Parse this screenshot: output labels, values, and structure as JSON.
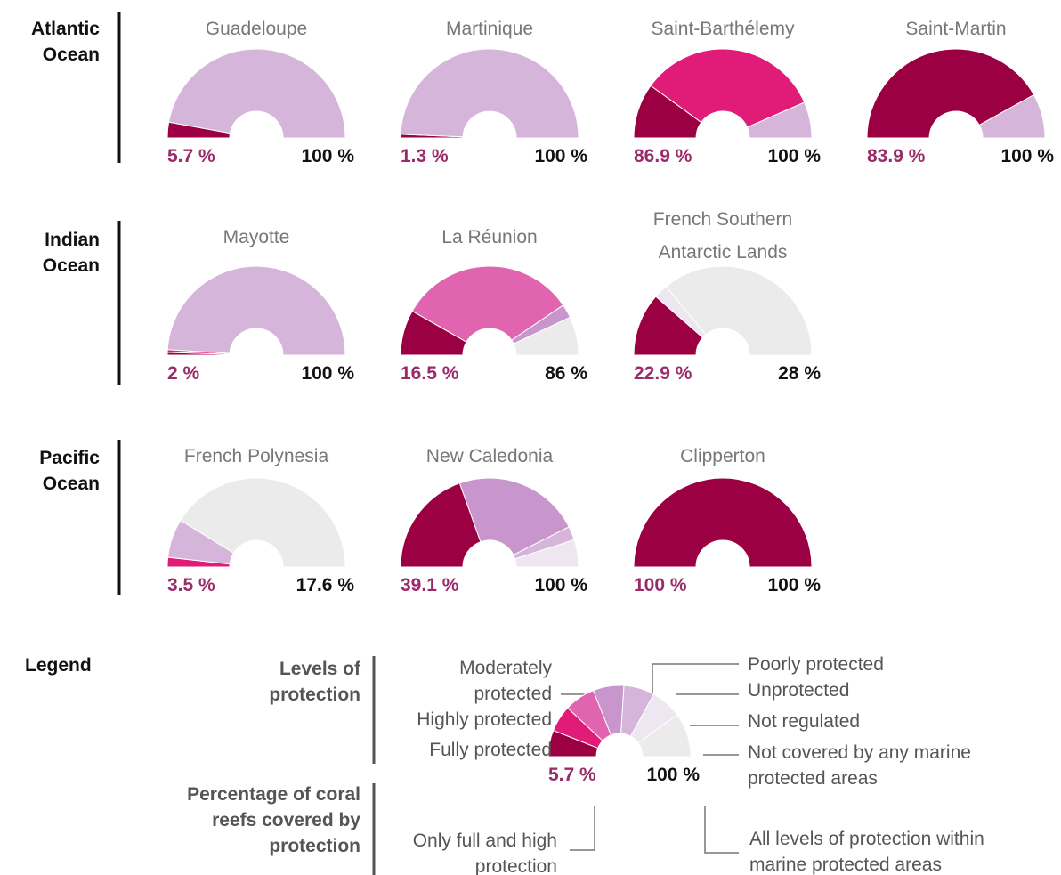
{
  "levels": [
    {
      "name": "Fully protected",
      "color": "#9b0042"
    },
    {
      "name": "Highly protected",
      "color": "#e01c78"
    },
    {
      "name": "Moderately protected",
      "color": "#e064b0"
    },
    {
      "name": "Poorly protected",
      "color": "#c896cc"
    },
    {
      "name": "Unprotected",
      "color": "#d5b6da"
    },
    {
      "name": "Not regulated",
      "color": "#eee6f0"
    },
    {
      "name": "Not covered by any marine protected areas",
      "color": "#ebebeb"
    }
  ],
  "regions": [
    {
      "name": "Atlantic Ocean",
      "charts": [
        {
          "type": "donut",
          "title": "Guadeloupe",
          "values": [
            5.7,
            0,
            0,
            0,
            94.3,
            0,
            0
          ],
          "summary": {
            "values": [
              5.7,
              100
            ],
            "value_labels": [
              "5.7 %",
              "100 %"
            ]
          }
        },
        {
          "type": "donut",
          "title": "Martinique",
          "values": [
            1.3,
            0,
            0,
            0,
            98.7,
            0,
            0
          ],
          "summary": {
            "values": [
              1.3,
              100
            ],
            "value_labels": [
              "1.3 %",
              "100 %"
            ]
          }
        },
        {
          "type": "donut",
          "title": "Saint-Barthélemy",
          "values": [
            20,
            66.9,
            0,
            0,
            13.1,
            0,
            0
          ],
          "summary": {
            "values": [
              86.9,
              100
            ],
            "value_labels": [
              "86.9 %",
              "100 %"
            ]
          }
        },
        {
          "type": "donut",
          "title": "Saint-Martin",
          "values": [
            83.9,
            0,
            0,
            0,
            16.1,
            0,
            0
          ],
          "summary": {
            "values": [
              83.9,
              100
            ],
            "value_labels": [
              "83.9 %",
              "100 %"
            ]
          }
        }
      ]
    },
    {
      "name": "Indian Ocean",
      "charts": [
        {
          "type": "donut",
          "title": "Mayotte",
          "values": [
            1,
            1,
            0,
            0,
            98,
            0,
            0
          ],
          "summary": {
            "values": [
              2,
              100
            ],
            "value_labels": [
              "2 %",
              "100 %"
            ]
          }
        },
        {
          "type": "donut",
          "title": "La Réunion",
          "values": [
            16.5,
            0,
            64.5,
            5,
            0,
            0,
            14
          ],
          "summary": {
            "values": [
              16.5,
              86
            ],
            "value_labels": [
              "16.5 %",
              "86 %"
            ]
          }
        },
        {
          "type": "donut",
          "title": "French Southern Antarctic Lands",
          "values": [
            22.9,
            0,
            0,
            0,
            0,
            5.1,
            72
          ],
          "summary": {
            "values": [
              22.9,
              28
            ],
            "value_labels": [
              "22.9 %",
              "28 %"
            ]
          }
        }
      ]
    },
    {
      "name": "Pacific Ocean",
      "charts": [
        {
          "type": "donut",
          "title": "French Polynesia",
          "values": [
            0,
            3.5,
            0,
            0,
            14.1,
            0,
            82.4
          ],
          "summary": {
            "values": [
              3.5,
              17.6
            ],
            "value_labels": [
              "3.5 %",
              "17.6 %"
            ]
          }
        },
        {
          "type": "donut",
          "title": "New Caledonia",
          "values": [
            39.1,
            0,
            0,
            46,
            5,
            9.9,
            0
          ],
          "summary": {
            "values": [
              39.1,
              100
            ],
            "value_labels": [
              "39.1 %",
              "100 %"
            ]
          }
        },
        {
          "type": "donut",
          "title": "Clipperton",
          "values": [
            100,
            0,
            0,
            0,
            0,
            0,
            0
          ],
          "summary": {
            "values": [
              100,
              100
            ],
            "value_labels": [
              "100 %",
              "100 %"
            ]
          }
        }
      ]
    }
  ],
  "legend": {
    "title": "Legend",
    "levels_heading": "Levels of protection",
    "percent_heading": "Percentage of coral reefs covered by protection",
    "type": "donut",
    "values": [
      12,
      12,
      14,
      14,
      14,
      14,
      20
    ],
    "summary": {
      "values": [
        5.7,
        100
      ],
      "value_labels": [
        "5.7 %",
        "100 %"
      ]
    },
    "summary_notes": [
      "Only full and high protection",
      "All levels of protection within marine protected areas"
    ]
  }
}
